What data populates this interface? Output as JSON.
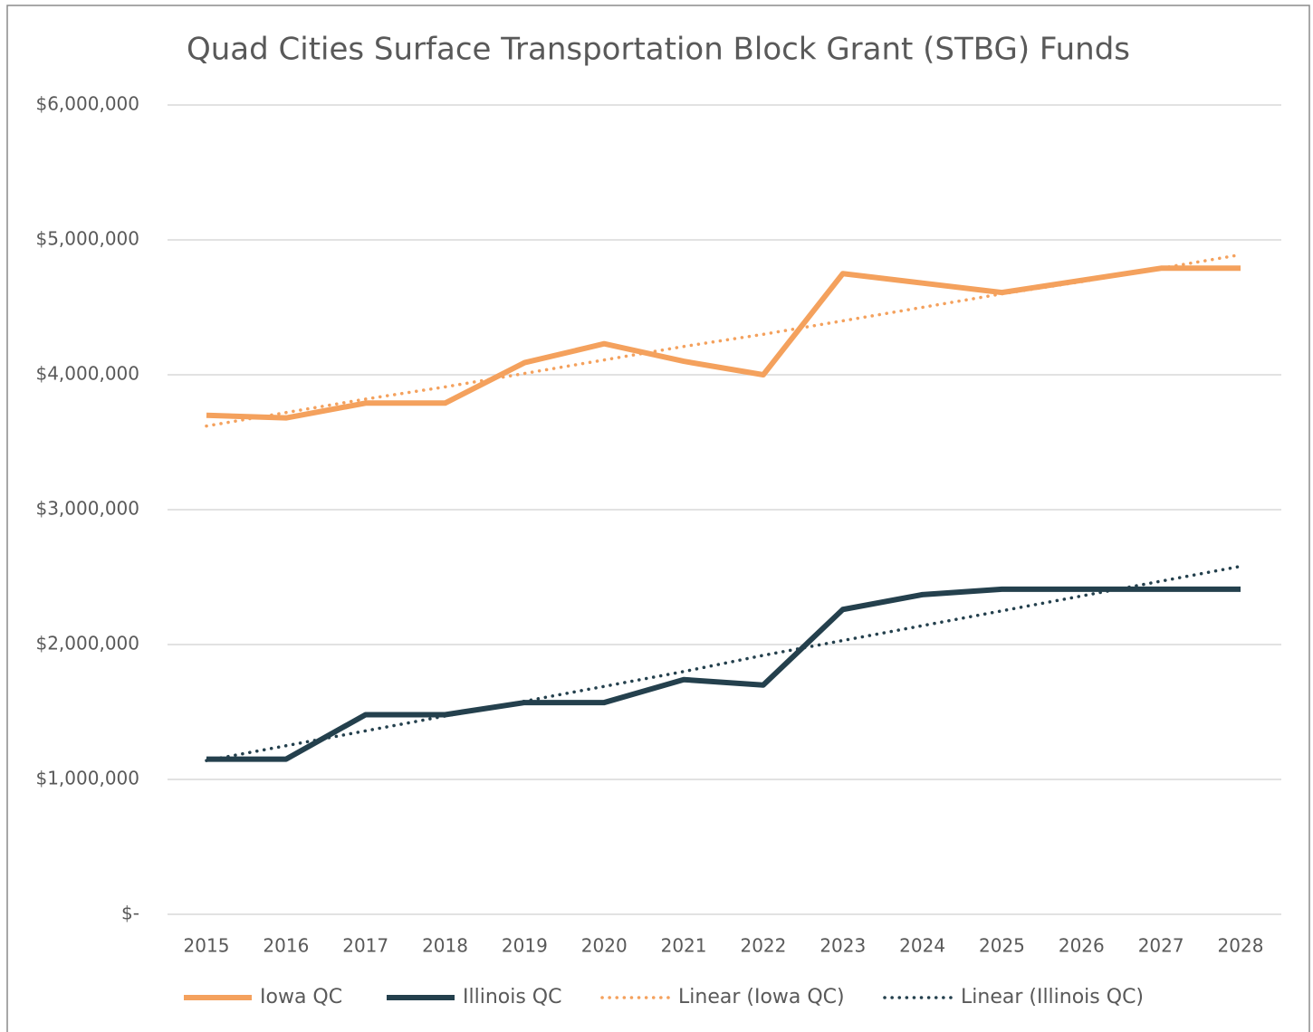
{
  "chart_data": {
    "type": "line",
    "title": "Quad Cities Surface Transportation Block Grant (STBG) Funds",
    "categories": [
      "2015",
      "2016",
      "2017",
      "2018",
      "2019",
      "2020",
      "2021",
      "2022",
      "2023",
      "2024",
      "2025",
      "2026",
      "2027",
      "2028"
    ],
    "series": [
      {
        "name": "Iowa QC",
        "color": "#f4a15d",
        "style": "solid",
        "values": [
          3700000,
          3680000,
          3790000,
          3790000,
          4090000,
          4230000,
          4100000,
          4000000,
          4750000,
          4680000,
          4610000,
          4700000,
          4790000,
          4790000
        ]
      },
      {
        "name": "Illinois QC",
        "color": "#24404d",
        "style": "solid",
        "values": [
          1150000,
          1150000,
          1480000,
          1480000,
          1570000,
          1570000,
          1740000,
          1700000,
          2260000,
          2370000,
          2410000,
          2410000,
          2410000,
          2410000
        ]
      },
      {
        "name": "Linear (Iowa QC)",
        "color": "#f4a15d",
        "style": "dotted",
        "values": [
          3620000,
          3720000,
          3820000,
          3910000,
          4010000,
          4110000,
          4210000,
          4300000,
          4400000,
          4500000,
          4600000,
          4690000,
          4790000,
          4890000
        ]
      },
      {
        "name": "Linear (Illinois QC)",
        "color": "#24404d",
        "style": "dotted",
        "values": [
          1140000,
          1250000,
          1360000,
          1470000,
          1580000,
          1690000,
          1800000,
          1920000,
          2030000,
          2140000,
          2250000,
          2360000,
          2470000,
          2580000
        ]
      }
    ],
    "ylim": [
      0,
      6000000
    ],
    "yticks": [
      {
        "value": 0,
        "label": "$-"
      },
      {
        "value": 1000000,
        "label": "$1,000,000"
      },
      {
        "value": 2000000,
        "label": "$2,000,000"
      },
      {
        "value": 3000000,
        "label": "$3,000,000"
      },
      {
        "value": 4000000,
        "label": "$4,000,000"
      },
      {
        "value": 5000000,
        "label": "$5,000,000"
      },
      {
        "value": 6000000,
        "label": "$6,000,000"
      }
    ],
    "grid": true,
    "legend": "bottom"
  }
}
